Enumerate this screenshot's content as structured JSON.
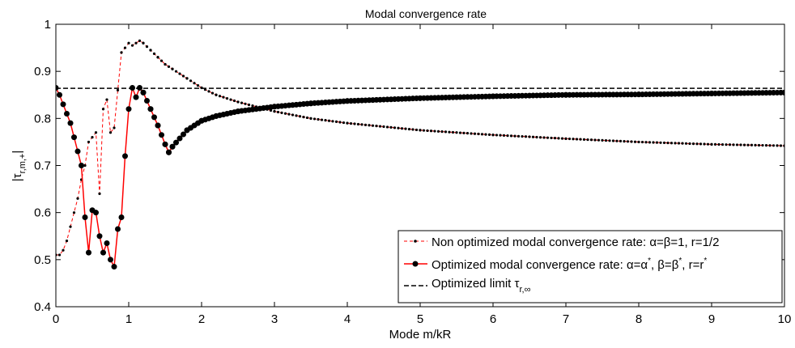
{
  "chart_data": {
    "type": "line",
    "title": "Modal convergence rate",
    "xlabel": "Mode m/kR",
    "ylabel": "|τ",
    "ylabel_sub": "r,m,+",
    "ylabel_close": "|",
    "xlim": [
      0,
      10
    ],
    "ylim": [
      0.4,
      1.0
    ],
    "xticks": [
      "0",
      "1",
      "2",
      "3",
      "4",
      "5",
      "6",
      "7",
      "8",
      "9",
      "10"
    ],
    "yticks": [
      "0.4",
      "0.5",
      "0.6",
      "0.7",
      "0.8",
      "0.9",
      "1"
    ],
    "grid": false,
    "legend_position": "bottom-right",
    "series": [
      {
        "name": "Non optimized modal convergence rate: α=β=1, r=1/2",
        "legend_parts": [
          "Non optimized modal convergence rate: ",
          "α=β=1, r=1/2"
        ],
        "color": "#ff0000",
        "line_style": "dashed",
        "marker_color": "#000000",
        "marker": "small-dot",
        "x": [
          0.0,
          0.05,
          0.1,
          0.15,
          0.2,
          0.25,
          0.3,
          0.35,
          0.4,
          0.45,
          0.5,
          0.55,
          0.6,
          0.65,
          0.7,
          0.75,
          0.8,
          0.85,
          0.9,
          0.95,
          1.0,
          1.05,
          1.1,
          1.15,
          1.2,
          1.3,
          1.4,
          1.5,
          1.6,
          1.8,
          2.0,
          2.2,
          2.5,
          3.0,
          3.5,
          4.0,
          5.0,
          6.0,
          7.0,
          8.0,
          9.0,
          10.0
        ],
        "y": [
          0.51,
          0.51,
          0.52,
          0.54,
          0.57,
          0.6,
          0.63,
          0.67,
          0.7,
          0.75,
          0.76,
          0.77,
          0.64,
          0.82,
          0.84,
          0.77,
          0.78,
          0.86,
          0.94,
          0.95,
          0.96,
          0.955,
          0.96,
          0.965,
          0.96,
          0.945,
          0.93,
          0.915,
          0.905,
          0.885,
          0.865,
          0.85,
          0.835,
          0.815,
          0.8,
          0.79,
          0.775,
          0.765,
          0.757,
          0.75,
          0.745,
          0.742
        ]
      },
      {
        "name": "Optimized modal convergence rate: α=α*, β=β*, r=r*",
        "legend_parts": [
          "Optimized modal convergence rate: ",
          "α=α",
          "*",
          ", β=β",
          "*",
          ", r=r",
          "*"
        ],
        "color": "#ff0000",
        "line_style": "solid",
        "marker_color": "#000000",
        "marker": "large-dot",
        "x": [
          0.0,
          0.05,
          0.1,
          0.15,
          0.2,
          0.25,
          0.3,
          0.35,
          0.4,
          0.45,
          0.5,
          0.55,
          0.6,
          0.65,
          0.7,
          0.75,
          0.8,
          0.85,
          0.9,
          0.95,
          1.0,
          1.05,
          1.1,
          1.15,
          1.2,
          1.3,
          1.4,
          1.5,
          1.55,
          1.6,
          1.8,
          2.0,
          2.2,
          2.5,
          3.0,
          3.5,
          4.0,
          5.0,
          6.0,
          7.0,
          8.0,
          9.0,
          10.0
        ],
        "y": [
          0.865,
          0.85,
          0.83,
          0.81,
          0.79,
          0.76,
          0.73,
          0.7,
          0.59,
          0.515,
          0.605,
          0.6,
          0.55,
          0.515,
          0.535,
          0.5,
          0.485,
          0.565,
          0.59,
          0.72,
          0.82,
          0.865,
          0.845,
          0.865,
          0.855,
          0.82,
          0.785,
          0.745,
          0.728,
          0.74,
          0.775,
          0.795,
          0.805,
          0.815,
          0.825,
          0.832,
          0.837,
          0.843,
          0.847,
          0.85,
          0.851,
          0.853,
          0.855
        ]
      },
      {
        "name": "Optimized limit τr,∞",
        "legend_parts": [
          "Optimized limit τ",
          "r,∞"
        ],
        "color": "#000000",
        "line_style": "dashed",
        "x": [
          0,
          10
        ],
        "y": [
          0.864,
          0.864
        ]
      }
    ]
  }
}
